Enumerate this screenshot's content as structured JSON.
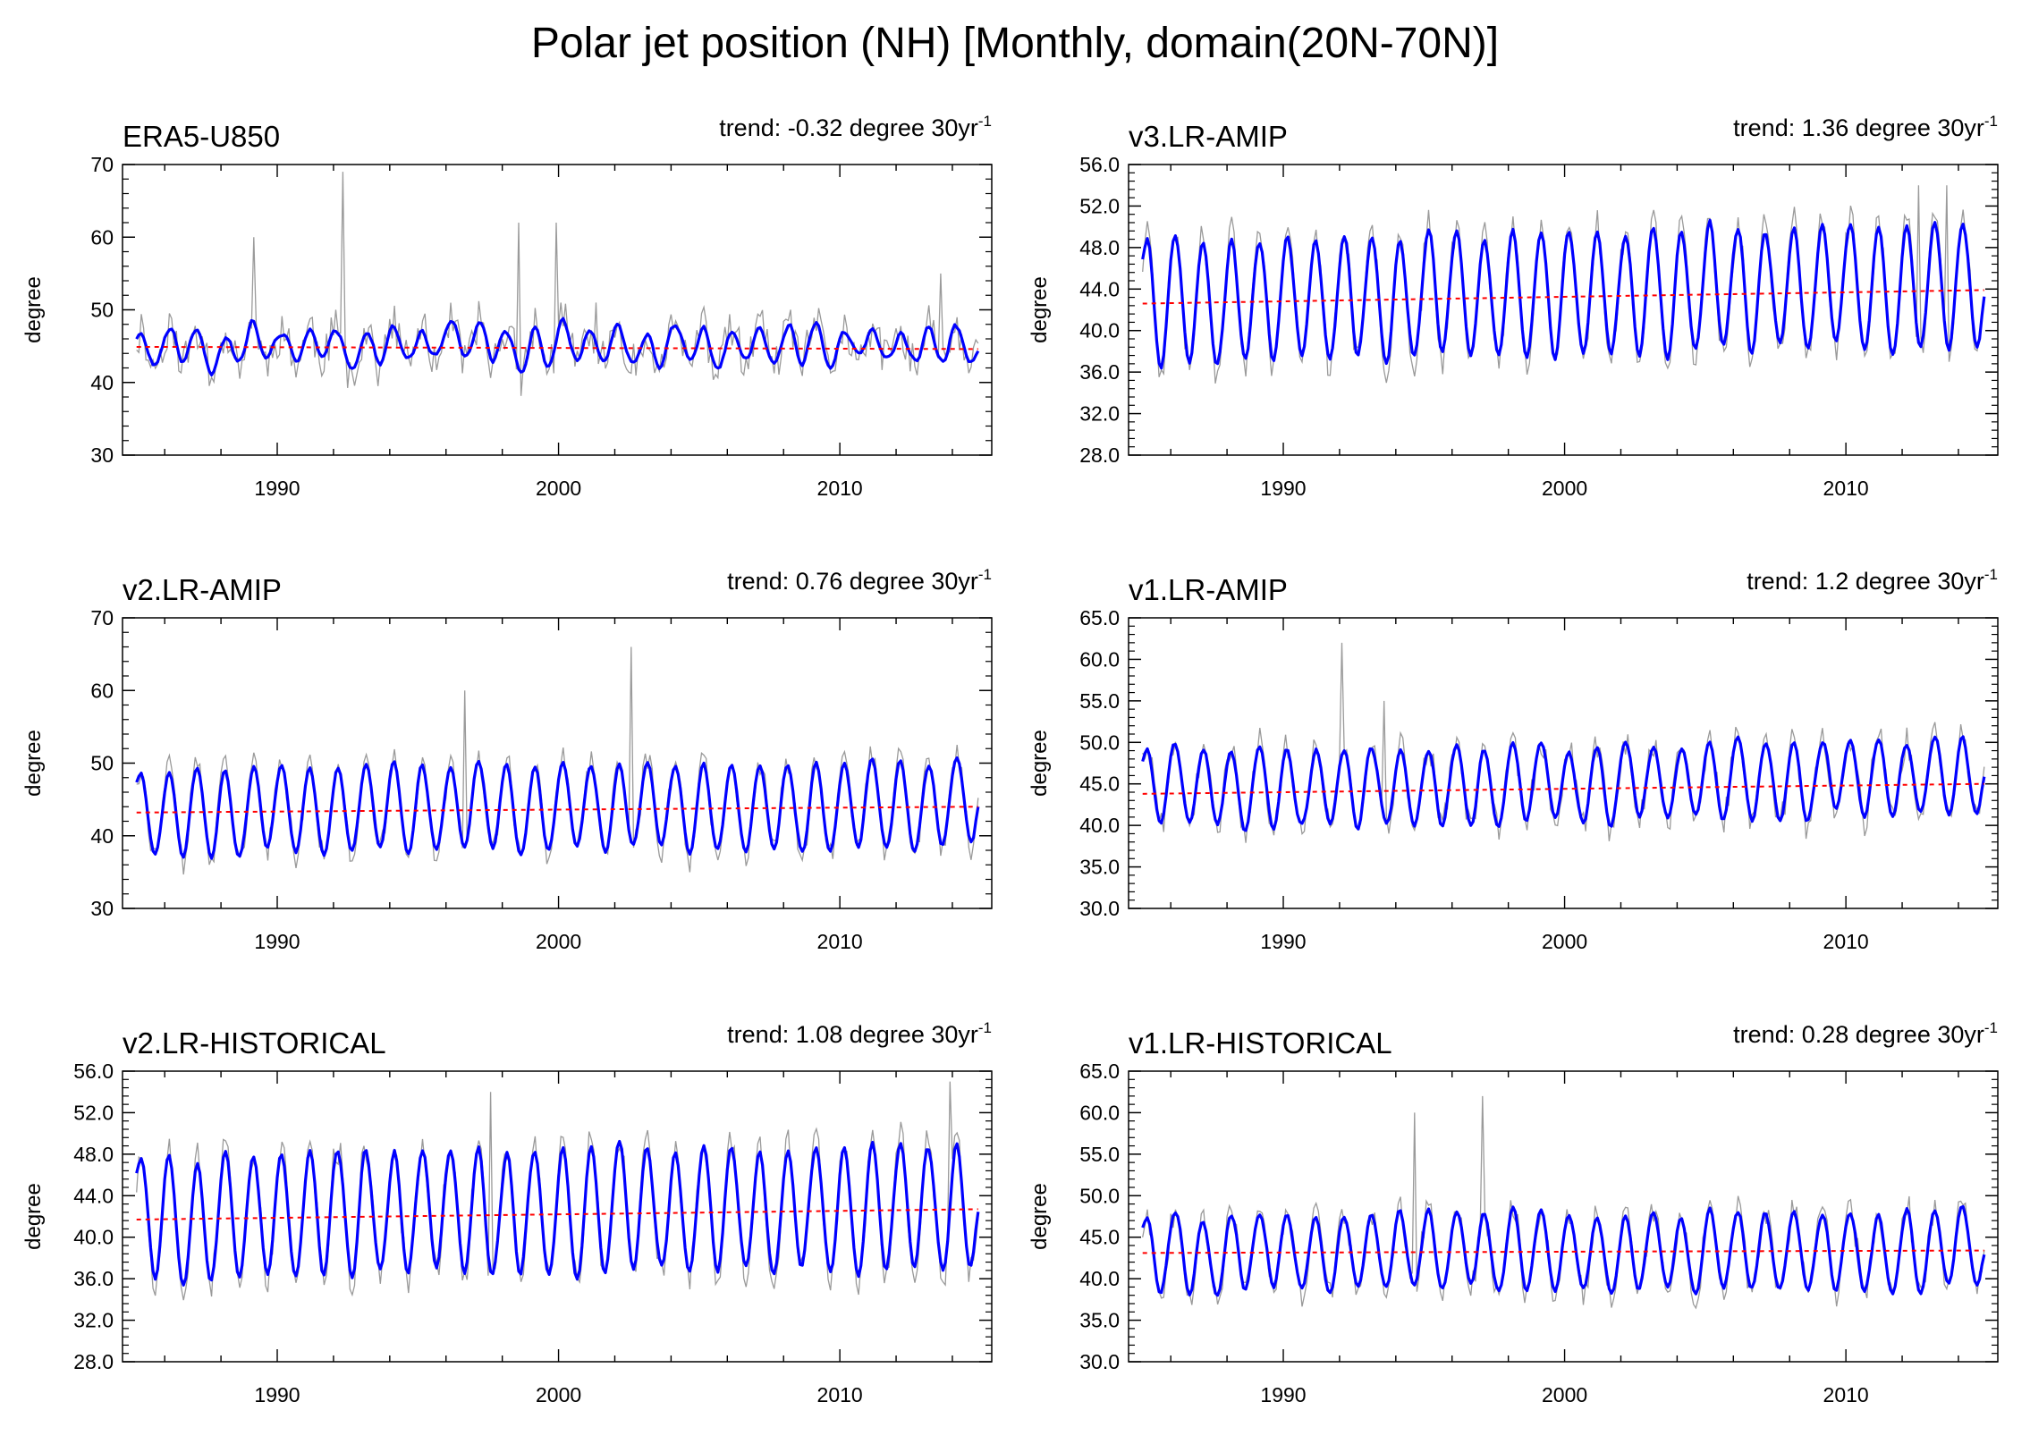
{
  "title": "Polar jet position (NH) [Monthly, domain(20N-70N)]",
  "colors": {
    "monthly": "#9a9a9a",
    "smoothed": "#0000ff",
    "trend": "#ff0000",
    "axes": "#000000"
  },
  "chart_data": [
    {
      "type": "line",
      "label": "ERA5-U850",
      "trend_text": "trend: -0.32 degree 30yr",
      "trend_sup": "-1",
      "ylabel": "degree",
      "ylim": [
        30,
        70
      ],
      "yticks": [
        30,
        40,
        50,
        60,
        70
      ],
      "ytick_labels": [
        "30",
        "40",
        "50",
        "60",
        "70"
      ],
      "xlim": [
        1984.5,
        2015.4
      ],
      "xticks": [
        1990,
        2000,
        2010
      ],
      "xtick_labels": [
        "1990",
        "2000",
        "2010"
      ],
      "t_start": 1985.0,
      "n_months": 360,
      "mean": 45.0,
      "amplitude": 2.5,
      "noise": 4.0,
      "smooth_noise": 2.0,
      "seed": 11,
      "trend_start": 44.9,
      "trend_end": 44.6,
      "spikes": [
        [
          1989.2,
          60
        ],
        [
          1992.3,
          69
        ],
        [
          1998.6,
          62
        ],
        [
          1999.9,
          62
        ],
        [
          2001.3,
          51
        ],
        [
          2013.6,
          55
        ]
      ],
      "series": [
        {
          "name": "",
          "values_kind": "monthly"
        },
        {
          "name": "",
          "values_kind": "smoothed"
        },
        {
          "name": "",
          "values_kind": "linear trend"
        }
      ]
    },
    {
      "type": "line",
      "label": "v3.LR-AMIP",
      "trend_text": "trend: 1.36 degree 30yr",
      "trend_sup": "-1",
      "ylabel": "degree",
      "ylim": [
        28,
        56
      ],
      "yticks": [
        28,
        32,
        36,
        40,
        44,
        48,
        52,
        56
      ],
      "ytick_labels": [
        "28.0",
        "32.0",
        "36.0",
        "40.0",
        "44.0",
        "48.0",
        "52.0",
        "56.0"
      ],
      "xlim": [
        1984.5,
        2015.4
      ],
      "xticks": [
        1990,
        2000,
        2010
      ],
      "xtick_labels": [
        "1990",
        "2000",
        "2010"
      ],
      "t_start": 1985.0,
      "n_months": 360,
      "mean": 43.0,
      "amplitude": 6.5,
      "noise": 2.0,
      "smooth_noise": 1.0,
      "seed": 23,
      "trend_start": 42.6,
      "trend_end": 43.9,
      "spikes": [
        [
          2012.6,
          54
        ],
        [
          2013.6,
          54
        ]
      ],
      "series": [
        {
          "name": "",
          "values_kind": "monthly"
        },
        {
          "name": "",
          "values_kind": "smoothed"
        },
        {
          "name": "",
          "values_kind": "linear trend"
        }
      ]
    },
    {
      "type": "line",
      "label": "v2.LR-AMIP",
      "trend_text": "trend: 0.76 degree 30yr",
      "trend_sup": "-1",
      "ylabel": "degree",
      "ylim": [
        30,
        70
      ],
      "yticks": [
        30,
        40,
        50,
        60,
        70
      ],
      "ytick_labels": [
        "30",
        "40",
        "50",
        "60",
        "70"
      ],
      "xlim": [
        1984.5,
        2015.4
      ],
      "xticks": [
        1990,
        2000,
        2010
      ],
      "xtick_labels": [
        "1990",
        "2000",
        "2010"
      ],
      "t_start": 1985.0,
      "n_months": 360,
      "mean": 43.5,
      "amplitude": 6.5,
      "noise": 2.5,
      "smooth_noise": 1.0,
      "seed": 37,
      "trend_start": 43.2,
      "trend_end": 44.0,
      "spikes": [
        [
          1996.7,
          60
        ],
        [
          2002.6,
          66
        ]
      ],
      "series": [
        {
          "name": "",
          "values_kind": "monthly"
        },
        {
          "name": "",
          "values_kind": "smoothed"
        },
        {
          "name": "",
          "values_kind": "linear trend"
        }
      ]
    },
    {
      "type": "line",
      "label": "v1.LR-AMIP",
      "trend_text": "trend: 1.2 degree 30yr",
      "trend_sup": "-1",
      "ylabel": "degree",
      "ylim": [
        30,
        65
      ],
      "yticks": [
        30,
        35,
        40,
        45,
        50,
        55,
        60,
        65
      ],
      "ytick_labels": [
        "30.0",
        "35.0",
        "40.0",
        "45.0",
        "50.0",
        "55.0",
        "60.0",
        "65.0"
      ],
      "xlim": [
        1984.5,
        2015.4
      ],
      "xticks": [
        1990,
        2000,
        2010
      ],
      "xtick_labels": [
        "1990",
        "2000",
        "2010"
      ],
      "t_start": 1985.0,
      "n_months": 360,
      "mean": 44.5,
      "amplitude": 5.0,
      "noise": 2.5,
      "smooth_noise": 1.2,
      "seed": 41,
      "trend_start": 43.8,
      "trend_end": 45.0,
      "spikes": [
        [
          1992.1,
          62
        ],
        [
          1993.6,
          55
        ]
      ],
      "series": [
        {
          "name": "",
          "values_kind": "monthly"
        },
        {
          "name": "",
          "values_kind": "smoothed"
        },
        {
          "name": "",
          "values_kind": "linear trend"
        }
      ]
    },
    {
      "type": "line",
      "label": "v2.LR-HISTORICAL",
      "trend_text": "trend: 1.08 degree 30yr",
      "trend_sup": "-1",
      "ylabel": "degree",
      "ylim": [
        28,
        56
      ],
      "yticks": [
        28,
        32,
        36,
        40,
        44,
        48,
        52,
        56
      ],
      "ytick_labels": [
        "28.0",
        "32.0",
        "36.0",
        "40.0",
        "44.0",
        "48.0",
        "52.0",
        "56.0"
      ],
      "xlim": [
        1984.5,
        2015.4
      ],
      "xticks": [
        1990,
        2000,
        2010
      ],
      "xtick_labels": [
        "1990",
        "2000",
        "2010"
      ],
      "t_start": 1985.0,
      "n_months": 360,
      "mean": 42.0,
      "amplitude": 6.5,
      "noise": 2.2,
      "smooth_noise": 1.0,
      "seed": 53,
      "trend_start": 41.7,
      "trend_end": 42.7,
      "spikes": [
        [
          1997.6,
          54
        ],
        [
          2013.9,
          55
        ]
      ],
      "series": [
        {
          "name": "",
          "values_kind": "monthly"
        },
        {
          "name": "",
          "values_kind": "smoothed"
        },
        {
          "name": "",
          "values_kind": "linear trend"
        }
      ]
    },
    {
      "type": "line",
      "label": "v1.LR-HISTORICAL",
      "trend_text": "trend: 0.28 degree 30yr",
      "trend_sup": "-1",
      "ylabel": "degree",
      "ylim": [
        30,
        65
      ],
      "yticks": [
        30,
        35,
        40,
        45,
        50,
        55,
        60,
        65
      ],
      "ytick_labels": [
        "30.0",
        "35.0",
        "40.0",
        "45.0",
        "50.0",
        "55.0",
        "60.0",
        "65.0"
      ],
      "xlim": [
        1984.5,
        2015.4
      ],
      "xticks": [
        1990,
        2000,
        2010
      ],
      "xtick_labels": [
        "1990",
        "2000",
        "2010"
      ],
      "t_start": 1985.0,
      "n_months": 360,
      "mean": 43.2,
      "amplitude": 5.0,
      "noise": 2.2,
      "smooth_noise": 1.2,
      "seed": 67,
      "trend_start": 43.1,
      "trend_end": 43.4,
      "spikes": [
        [
          1994.7,
          60
        ],
        [
          1997.1,
          62
        ]
      ],
      "series": [
        {
          "name": "",
          "values_kind": "monthly"
        },
        {
          "name": "",
          "values_kind": "smoothed"
        },
        {
          "name": "",
          "values_kind": "linear trend"
        }
      ]
    }
  ]
}
